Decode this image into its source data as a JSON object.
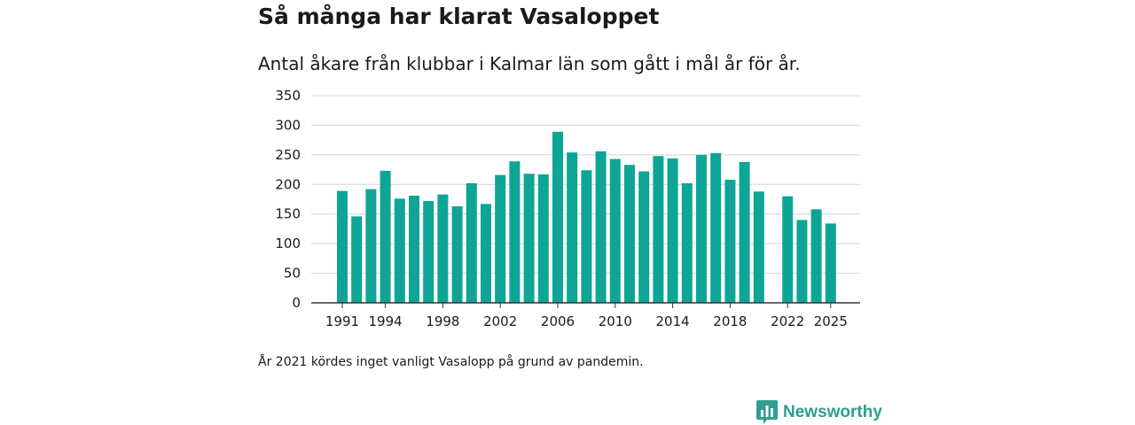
{
  "colors": {
    "bar": "#0ea597",
    "grid": "#d4d4d4",
    "axis": "#333333",
    "brand": "#2f9e91"
  },
  "footnote": "År 2021 kördes inget vanligt Vasalopp på grund av pandemin.",
  "brand": {
    "name": "Newsworthy",
    "icon": "bar-chart-speech-icon"
  },
  "chart_data": {
    "type": "bar",
    "title": "Så många har klarat Vasaloppet",
    "subtitle": "Antal åkare från klubbar i Kalmar län som gått i mål år för år.",
    "xlabel": "",
    "ylabel": "",
    "ylim": [
      0,
      350
    ],
    "yticks": [
      0,
      50,
      100,
      150,
      200,
      250,
      300,
      350
    ],
    "xticks": [
      1991,
      1994,
      1998,
      2002,
      2006,
      2010,
      2014,
      2018,
      2022,
      2025
    ],
    "grid": true,
    "categories": [
      1991,
      1992,
      1993,
      1994,
      1995,
      1996,
      1997,
      1998,
      1999,
      2000,
      2001,
      2002,
      2003,
      2004,
      2005,
      2006,
      2007,
      2008,
      2009,
      2010,
      2011,
      2012,
      2013,
      2014,
      2015,
      2016,
      2017,
      2018,
      2019,
      2020,
      2021,
      2022,
      2023,
      2024,
      2025
    ],
    "values": [
      189,
      146,
      192,
      223,
      176,
      181,
      172,
      183,
      163,
      202,
      167,
      216,
      239,
      218,
      217,
      289,
      254,
      224,
      256,
      243,
      233,
      222,
      248,
      244,
      202,
      250,
      253,
      208,
      238,
      188,
      null,
      180,
      140,
      158,
      134
    ]
  }
}
